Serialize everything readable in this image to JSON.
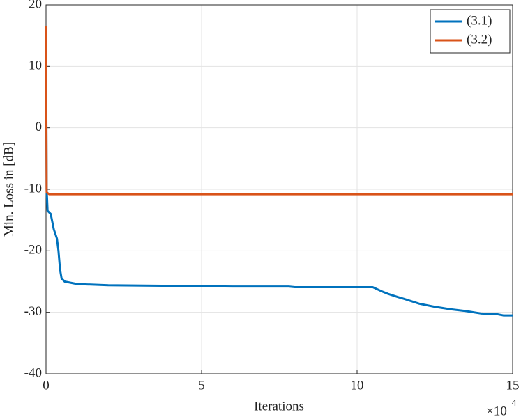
{
  "chart_data": {
    "type": "line",
    "xlabel": "Iterations",
    "ylabel": "Min. Loss in [dB]",
    "x_multiplier": "×10",
    "x_multiplier_exponent": "4",
    "xlim": [
      0,
      15
    ],
    "xticks": [
      0,
      5,
      10,
      15
    ],
    "ylim": [
      -40,
      20
    ],
    "yticks": [
      -40,
      -30,
      -20,
      -10,
      0,
      10,
      20
    ],
    "grid": true,
    "legend": "northeast",
    "series": [
      {
        "name": "(3.1)",
        "color": "#0072BD",
        "x": [
          0,
          0.02,
          0.05,
          0.15,
          0.25,
          0.35,
          0.4,
          0.45,
          0.5,
          0.6,
          0.8,
          1.0,
          2,
          4,
          6,
          7.8,
          8,
          10.5,
          10.8,
          11,
          11.3,
          11.5,
          12,
          12.5,
          13,
          13.5,
          14,
          14.5,
          14.7,
          15
        ],
        "values": [
          16.5,
          -10,
          -13.5,
          -14,
          -16.5,
          -18,
          -20,
          -23,
          -24.5,
          -25,
          -25.2,
          -25.4,
          -25.6,
          -25.7,
          -25.8,
          -25.8,
          -25.9,
          -25.9,
          -26.6,
          -27,
          -27.5,
          -27.8,
          -28.6,
          -29.1,
          -29.5,
          -29.8,
          -30.2,
          -30.3,
          -30.5,
          -30.5
        ]
      },
      {
        "name": "(3.2)",
        "color": "#D95319",
        "x": [
          0,
          0.02,
          0.1,
          15
        ],
        "values": [
          16.5,
          -10.5,
          -10.8,
          -10.8
        ]
      }
    ]
  }
}
